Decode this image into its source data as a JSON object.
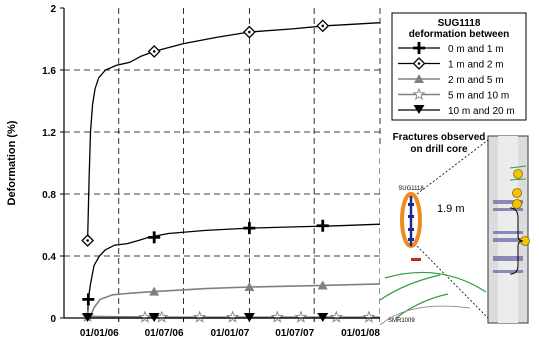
{
  "chart_data": {
    "type": "line",
    "title": "",
    "ylabel": "Deformation (%)",
    "xlabel": "",
    "ylim": [
      0,
      2
    ],
    "xlim": [
      "2005-08-01",
      "2008-01-01"
    ],
    "yticks": [
      "0",
      "0.4",
      "0.8",
      "1.2",
      "1.6",
      "2"
    ],
    "xticks": [
      "01/01/06",
      "01/07/06",
      "01/01/07",
      "01/07/07",
      "01/01/08"
    ],
    "grid": true,
    "legend_title": "SUG1118\ndeformation between",
    "legend_position": "top-right",
    "series": [
      {
        "name": "0 m and 1 m",
        "marker": "plus",
        "color": "#000000",
        "points": [
          [
            "2005-10-06",
            0.0
          ],
          [
            "2005-10-08",
            0.12
          ],
          [
            "2005-10-14",
            0.22
          ],
          [
            "2005-10-24",
            0.34
          ],
          [
            "2005-11-08",
            0.4
          ],
          [
            "2005-11-25",
            0.44
          ],
          [
            "2005-12-20",
            0.47
          ],
          [
            "2006-01-25",
            0.48
          ],
          [
            "2006-02-25",
            0.5
          ],
          [
            "2006-03-25",
            0.52
          ],
          [
            "2006-05-20",
            0.545
          ],
          [
            "2006-09-01",
            0.565
          ],
          [
            "2007-01-01",
            0.58
          ],
          [
            "2007-06-01",
            0.59
          ],
          [
            "2007-09-01",
            0.595
          ],
          [
            "2008-01-01",
            0.605
          ]
        ],
        "marker_points": [
          [
            "2005-10-08",
            0.12
          ],
          [
            "2006-04-10",
            0.52
          ],
          [
            "2007-01-01",
            0.58
          ],
          [
            "2007-07-25",
            0.595
          ]
        ]
      },
      {
        "name": "1 m and 2 m",
        "marker": "diamond",
        "color": "#000000",
        "points": [
          [
            "2005-10-06",
            0.5
          ],
          [
            "2005-10-10",
            0.9
          ],
          [
            "2005-10-14",
            1.2
          ],
          [
            "2005-10-20",
            1.38
          ],
          [
            "2005-10-27",
            1.48
          ],
          [
            "2005-11-06",
            1.55
          ],
          [
            "2005-11-25",
            1.6
          ],
          [
            "2005-12-25",
            1.63
          ],
          [
            "2006-02-01",
            1.65
          ],
          [
            "2006-03-05",
            1.69
          ],
          [
            "2006-04-10",
            1.72
          ],
          [
            "2006-07-01",
            1.77
          ],
          [
            "2006-10-01",
            1.81
          ],
          [
            "2007-01-01",
            1.845
          ],
          [
            "2007-05-01",
            1.865
          ],
          [
            "2007-08-01",
            1.885
          ],
          [
            "2007-10-15",
            1.895
          ],
          [
            "2008-01-01",
            1.905
          ]
        ],
        "marker_points": [
          [
            "2005-10-06",
            0.5
          ],
          [
            "2006-04-10",
            1.72
          ],
          [
            "2007-01-01",
            1.845
          ],
          [
            "2007-07-25",
            1.885
          ]
        ]
      },
      {
        "name": "2 m and 5 m",
        "marker": "triangle-up",
        "color": "#808080",
        "points": [
          [
            "2005-10-06",
            0.0
          ],
          [
            "2005-10-15",
            0.02
          ],
          [
            "2005-10-25",
            0.07
          ],
          [
            "2005-11-10",
            0.12
          ],
          [
            "2005-12-15",
            0.15
          ],
          [
            "2006-02-01",
            0.16
          ],
          [
            "2006-04-10",
            0.17
          ],
          [
            "2006-09-01",
            0.19
          ],
          [
            "2007-01-01",
            0.2
          ],
          [
            "2007-07-25",
            0.21
          ],
          [
            "2008-01-01",
            0.22
          ]
        ],
        "marker_points": [
          [
            "2006-04-10",
            0.17
          ],
          [
            "2007-01-01",
            0.2
          ],
          [
            "2007-07-25",
            0.21
          ]
        ]
      },
      {
        "name": "5 m and 10 m",
        "marker": "star",
        "color": "#808080",
        "points": [
          [
            "2005-10-06",
            0.01
          ],
          [
            "2006-06-01",
            0.005
          ],
          [
            "2007-01-01",
            0.005
          ],
          [
            "2008-01-01",
            0.005
          ]
        ],
        "marker_points": [
          [
            "2005-10-06",
            0.01
          ],
          [
            "2006-03-15",
            0.005
          ],
          [
            "2006-05-01",
            0.005
          ],
          [
            "2006-08-15",
            0.005
          ],
          [
            "2006-11-15",
            0.005
          ],
          [
            "2007-03-20",
            0.005
          ],
          [
            "2007-05-25",
            0.005
          ],
          [
            "2007-09-01",
            0.005
          ],
          [
            "2007-12-01",
            0.005
          ]
        ]
      },
      {
        "name": "10 m and 20 m",
        "marker": "triangle-down",
        "color": "#000000",
        "points": [
          [
            "2005-10-06",
            0.0
          ],
          [
            "2008-01-01",
            0.0
          ]
        ],
        "marker_points": [
          [
            "2005-10-06",
            0.0
          ],
          [
            "2006-04-10",
            0.0
          ],
          [
            "2007-01-01",
            0.0
          ],
          [
            "2007-07-25",
            0.0
          ]
        ]
      }
    ]
  },
  "inset": {
    "title_line1": "Fractures observed",
    "title_line2": "on drill core",
    "borehole_label": "SUG1118",
    "distance_label": "1.9 m",
    "neighbour_label": "SMR1009",
    "fracture_marker": "fracture-circle-icon"
  },
  "colors": {
    "highlight_ring": "#f08a1c",
    "fault_lines": "#2e9e3a",
    "fracture_markers": "#f5c400",
    "core_bands": "#6a6aa8"
  }
}
